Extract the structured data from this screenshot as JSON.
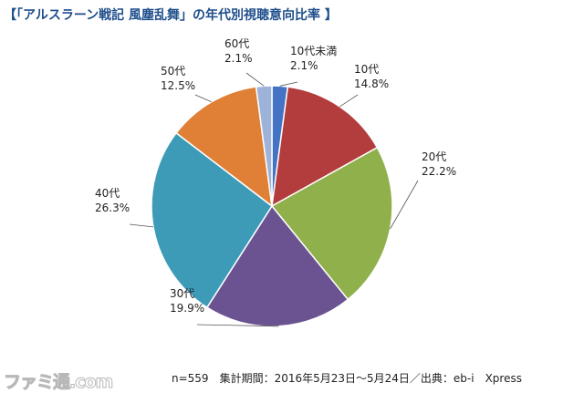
{
  "title": "【「アルスラーン戦記 風塵乱舞」の年代別視聴意向比率 】",
  "footer": "n=559　集計期間：2016年5月23日～5月24日／出典：eb-i　Xpress",
  "watermark": "ファミ通.com",
  "chart_data": {
    "type": "pie",
    "title": "【「アルスラーン戦記 風塵乱舞」の年代別視聴意向比率 】",
    "slices": [
      {
        "label": "10代未満",
        "value": 2.1,
        "value_label": "2.1%",
        "color": "#4472c4"
      },
      {
        "label": "10代",
        "value": 14.8,
        "value_label": "14.8%",
        "color": "#b33c3c"
      },
      {
        "label": "20代",
        "value": 22.2,
        "value_label": "22.2%",
        "color": "#8fb04a"
      },
      {
        "label": "30代",
        "value": 19.9,
        "value_label": "19.9%",
        "color": "#6b5391"
      },
      {
        "label": "40代",
        "value": 26.3,
        "value_label": "26.3%",
        "color": "#3d9bb8"
      },
      {
        "label": "50代",
        "value": 12.5,
        "value_label": "12.5%",
        "color": "#e07f36"
      },
      {
        "label": "60代",
        "value": 2.1,
        "value_label": "2.1%",
        "color": "#9eb3da"
      }
    ],
    "start": "12 o'clock",
    "direction": "clockwise",
    "legend": "none"
  }
}
